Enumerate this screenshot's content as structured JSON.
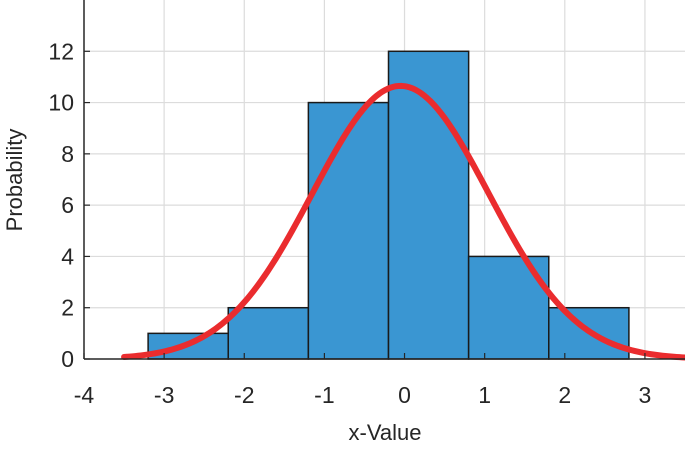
{
  "chart_data": {
    "type": "bar",
    "title": "",
    "xlabel": "x-Value",
    "ylabel": "Probability",
    "xlim": [
      -4,
      3.5
    ],
    "ylim": [
      0,
      14
    ],
    "grid": true,
    "x_ticks": [
      -4,
      -3,
      -2,
      -1,
      0,
      1,
      2,
      3
    ],
    "x_tick_labels": [
      "-4",
      "-3",
      "-2",
      "-1",
      "0",
      "1",
      "2",
      "3"
    ],
    "y_ticks": [
      0,
      2,
      4,
      6,
      8,
      10,
      12
    ],
    "y_tick_labels": [
      "0",
      "2",
      "4",
      "6",
      "8",
      "10",
      "12"
    ],
    "histogram": {
      "bin_edges": [
        -3.2,
        -2.2,
        -1.2,
        -0.2,
        0.8,
        1.8,
        2.8
      ],
      "counts": [
        1,
        2,
        10,
        12,
        4,
        2
      ],
      "color": "#3a96d2"
    },
    "fit_curve": {
      "kind": "normal",
      "mean": -0.05,
      "std": 1.1,
      "peak": 10.65,
      "x_range": [
        -3.5,
        3.5
      ],
      "color": "#ea2c2e"
    }
  }
}
